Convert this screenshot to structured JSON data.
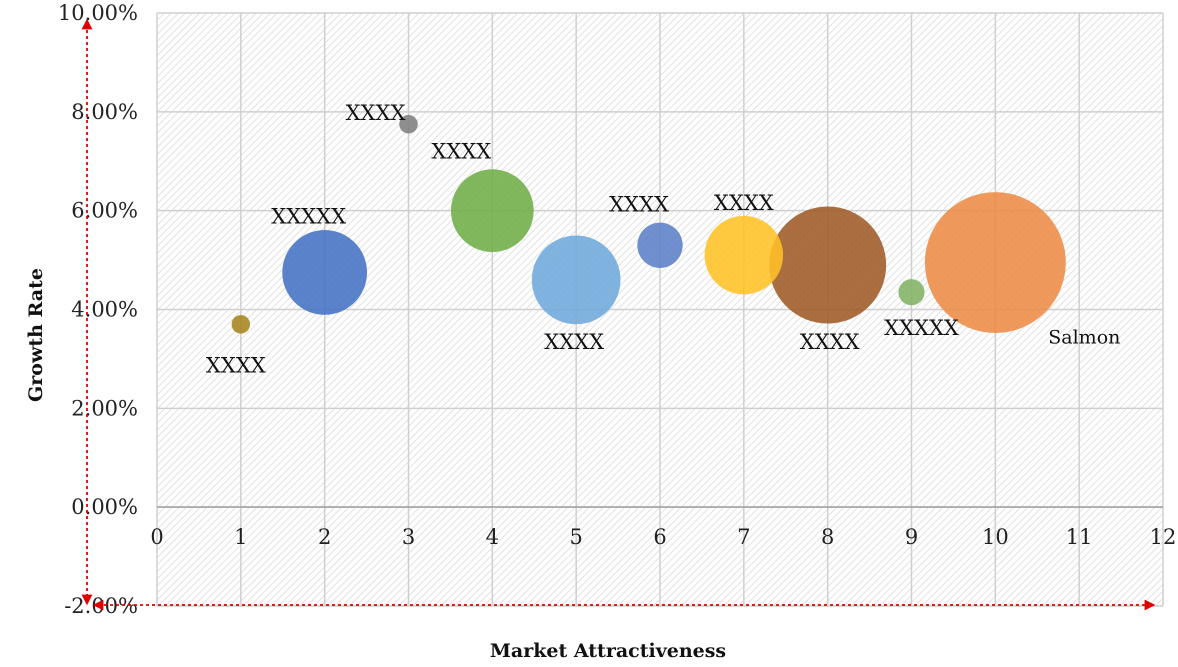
{
  "chart_data": {
    "type": "bubble",
    "title": "",
    "xlabel": "Market Attractiveness",
    "ylabel": "Growth Rate",
    "xlim": [
      0,
      12
    ],
    "ylim": [
      -2,
      10
    ],
    "x_ticks": [
      "0",
      "1",
      "2",
      "3",
      "4",
      "5",
      "6",
      "7",
      "8",
      "9",
      "10",
      "11",
      "12"
    ],
    "y_ticks": [
      "-2.00%",
      "0.00%",
      "2.00%",
      "4.00%",
      "6.00%",
      "8.00%",
      "10.00%"
    ],
    "grid": true,
    "points": [
      {
        "label": "XXXX",
        "x": 1,
        "y": 3.7,
        "size": 1,
        "color": "#a6841f"
      },
      {
        "label": "XXXXX",
        "x": 2,
        "y": 4.75,
        "size": 21,
        "color": "#4472c4"
      },
      {
        "label": "XXXX",
        "x": 3,
        "y": 7.75,
        "size": 1,
        "color": "#7f7f7f"
      },
      {
        "label": "XXXX",
        "x": 4,
        "y": 6.0,
        "size": 20,
        "color": "#70ad47"
      },
      {
        "label": "XXXX",
        "x": 5,
        "y": 4.6,
        "size": 23,
        "color": "#6fa8dc"
      },
      {
        "label": "XXXX",
        "x": 6,
        "y": 5.3,
        "size": 6,
        "color": "#5b7fc7"
      },
      {
        "label": "XXXX",
        "x": 7,
        "y": 5.1,
        "size": 18,
        "color": "#ffc125"
      },
      {
        "label": "XXXX",
        "x": 8,
        "y": 4.9,
        "size": 40,
        "color": "#9e5a26"
      },
      {
        "label": "XXXXX",
        "x": 9,
        "y": 4.35,
        "size": 2,
        "color": "#82b365"
      },
      {
        "label": "Salmon",
        "x": 10,
        "y": 4.95,
        "size": 58,
        "color": "#ed8b47"
      }
    ]
  }
}
